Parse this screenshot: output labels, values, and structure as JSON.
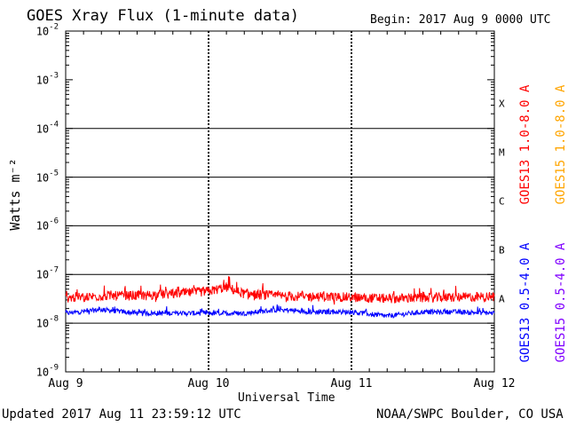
{
  "header": {
    "title": "GOES Xray Flux (1-minute data)",
    "begin": "Begin:  2017 Aug 9 0000 UTC"
  },
  "footer": {
    "updated": "Updated 2017 Aug 11 23:59:12 UTC",
    "credit": "NOAA/SWPC Boulder, CO USA"
  },
  "colors": {
    "goes13_long": "#ff0000",
    "goes15_long": "#ffa500",
    "goes13_short": "#0000ff",
    "goes15_short": "#8000ff"
  },
  "chart_data": {
    "type": "line",
    "ylabel": "Watts m⁻²",
    "xlabel": "Universal Time",
    "y_scale": "log",
    "ylim": [
      1e-09,
      0.01
    ],
    "y_ticks": [
      {
        "base": "10",
        "exp": "-2"
      },
      {
        "base": "10",
        "exp": "-3"
      },
      {
        "base": "10",
        "exp": "-4"
      },
      {
        "base": "10",
        "exp": "-5"
      },
      {
        "base": "10",
        "exp": "-6"
      },
      {
        "base": "10",
        "exp": "-7"
      },
      {
        "base": "10",
        "exp": "-8"
      },
      {
        "base": "10",
        "exp": "-9"
      }
    ],
    "x_ticks": [
      "Aug 9",
      "Aug 10",
      "Aug 11",
      "Aug 12"
    ],
    "xlim": [
      "2017-08-09 00:00",
      "2017-08-12 00:00"
    ],
    "flare_classes": [
      {
        "label": "X",
        "level": 0.0001
      },
      {
        "label": "M",
        "level": 1e-05
      },
      {
        "label": "C",
        "level": 1e-06
      },
      {
        "label": "B",
        "level": 1e-07
      },
      {
        "label": "A",
        "level": 1e-08
      }
    ],
    "grid": true,
    "legend_placement": "right, vertical",
    "series": [
      {
        "name": "GOES13 1.0-8.0 A",
        "color": "#ff0000",
        "approx_level": 3.5e-08,
        "x": [
          "2017-08-09 00:00",
          "2017-08-09 06:00",
          "2017-08-09 12:00",
          "2017-08-09 18:00",
          "2017-08-10 00:00",
          "2017-08-10 03:00",
          "2017-08-10 06:00",
          "2017-08-10 12:00",
          "2017-08-10 18:00",
          "2017-08-11 00:00",
          "2017-08-11 06:00",
          "2017-08-11 12:00",
          "2017-08-11 18:00",
          "2017-08-12 00:00"
        ],
        "y": [
          3.3e-08,
          3.6e-08,
          3.7e-08,
          4e-08,
          4.5e-08,
          5.5e-08,
          4e-08,
          3.6e-08,
          3.5e-08,
          3.4e-08,
          3.2e-08,
          3.3e-08,
          3.4e-08,
          3.5e-08
        ]
      },
      {
        "name": "GOES15 1.0-8.0 A",
        "color": "#ffa500",
        "approx_level": 3e-08
      },
      {
        "name": "GOES13 0.5-4.0 A",
        "color": "#0000ff",
        "approx_level": 1.7e-08,
        "x": [
          "2017-08-09 00:00",
          "2017-08-09 06:00",
          "2017-08-09 12:00",
          "2017-08-09 18:00",
          "2017-08-10 00:00",
          "2017-08-10 06:00",
          "2017-08-10 12:00",
          "2017-08-10 18:00",
          "2017-08-11 00:00",
          "2017-08-11 06:00",
          "2017-08-11 12:00",
          "2017-08-11 18:00",
          "2017-08-12 00:00"
        ],
        "y": [
          1.6e-08,
          1.9e-08,
          1.6e-08,
          1.6e-08,
          1.6e-08,
          1.6e-08,
          1.9e-08,
          1.7e-08,
          1.7e-08,
          1.4e-08,
          1.7e-08,
          1.7e-08,
          1.6e-08
        ]
      },
      {
        "name": "GOES15 0.5-4.0 A",
        "color": "#8000ff",
        "approx_level": 1.5e-08
      }
    ]
  }
}
